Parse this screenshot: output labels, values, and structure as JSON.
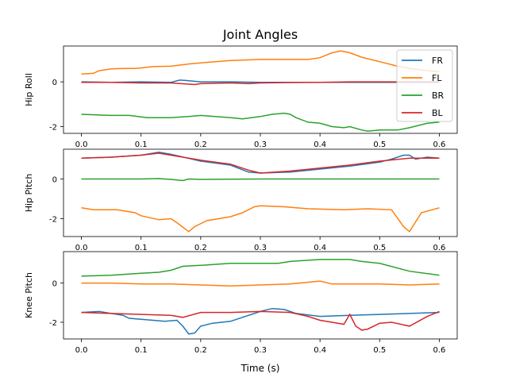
{
  "figure": {
    "title": "Joint Angles",
    "xlabel": "Time (s)"
  },
  "colors": {
    "FR": "#1f77b4",
    "FL": "#ff7f0e",
    "BR": "#2ca02c",
    "BL": "#d62728"
  },
  "legend": {
    "placement": "top-right",
    "entries": [
      "FR",
      "FL",
      "BR",
      "BL"
    ]
  },
  "chart_data": [
    {
      "type": "line",
      "ylabel": "Hip Roll",
      "xlim": [
        -0.03,
        0.63
      ],
      "ylim": [
        -2.3,
        1.6
      ],
      "xticks": [
        "0.0",
        "0.1",
        "0.2",
        "0.3",
        "0.4",
        "0.5",
        "0.6"
      ],
      "yticks": [
        "-2",
        "0"
      ],
      "series": [
        {
          "name": "FR",
          "x": [
            0,
            0.05,
            0.1,
            0.15,
            0.165,
            0.175,
            0.2,
            0.25,
            0.3,
            0.35,
            0.4,
            0.45,
            0.5,
            0.55,
            0.6
          ],
          "y": [
            0,
            -0.02,
            0,
            -0.02,
            0.08,
            0.06,
            0,
            0,
            -0.02,
            -0.02,
            -0.02,
            -0.02,
            -0.02,
            -0.02,
            -0.02
          ]
        },
        {
          "name": "FL",
          "x": [
            0,
            0.02,
            0.03,
            0.05,
            0.07,
            0.09,
            0.1,
            0.12,
            0.15,
            0.18,
            0.2,
            0.25,
            0.3,
            0.35,
            0.38,
            0.4,
            0.42,
            0.435,
            0.45,
            0.47,
            0.5,
            0.53,
            0.55,
            0.58,
            0.6
          ],
          "y": [
            0.35,
            0.38,
            0.5,
            0.58,
            0.6,
            0.6,
            0.62,
            0.68,
            0.7,
            0.8,
            0.85,
            0.95,
            1.0,
            1.0,
            1.0,
            1.08,
            1.3,
            1.38,
            1.3,
            1.1,
            0.9,
            0.7,
            0.6,
            0.5,
            0.45
          ]
        },
        {
          "name": "BR",
          "x": [
            0,
            0.03,
            0.05,
            0.08,
            0.11,
            0.15,
            0.18,
            0.2,
            0.25,
            0.27,
            0.3,
            0.32,
            0.34,
            0.35,
            0.36,
            0.38,
            0.4,
            0.42,
            0.44,
            0.45,
            0.47,
            0.48,
            0.5,
            0.53,
            0.55,
            0.58,
            0.6
          ],
          "y": [
            -1.45,
            -1.48,
            -1.5,
            -1.5,
            -1.6,
            -1.6,
            -1.55,
            -1.5,
            -1.6,
            -1.65,
            -1.55,
            -1.45,
            -1.4,
            -1.45,
            -1.6,
            -1.8,
            -1.85,
            -2.0,
            -2.05,
            -2.0,
            -2.15,
            -2.2,
            -2.15,
            -2.15,
            -2.05,
            -1.85,
            -1.8
          ]
        },
        {
          "name": "BL",
          "x": [
            0,
            0.05,
            0.1,
            0.15,
            0.19,
            0.2,
            0.25,
            0.28,
            0.3,
            0.35,
            0.4,
            0.45,
            0.5,
            0.55,
            0.6
          ],
          "y": [
            -0.02,
            -0.02,
            -0.05,
            -0.05,
            -0.12,
            -0.08,
            -0.05,
            -0.08,
            -0.05,
            -0.03,
            -0.02,
            0,
            0,
            0,
            0
          ]
        }
      ]
    },
    {
      "type": "line",
      "ylabel": "Hip Pitch",
      "xlim": [
        -0.03,
        0.63
      ],
      "ylim": [
        -2.9,
        1.5
      ],
      "xticks": [
        "0.0",
        "0.1",
        "0.2",
        "0.3",
        "0.4",
        "0.5",
        "0.6"
      ],
      "yticks": [
        "-2",
        "0"
      ],
      "series": [
        {
          "name": "FR",
          "x": [
            0,
            0.05,
            0.1,
            0.13,
            0.15,
            0.2,
            0.25,
            0.28,
            0.3,
            0.35,
            0.4,
            0.45,
            0.5,
            0.52,
            0.54,
            0.55,
            0.56,
            0.58,
            0.6
          ],
          "y": [
            1.05,
            1.1,
            1.2,
            1.35,
            1.25,
            0.9,
            0.7,
            0.35,
            0.3,
            0.35,
            0.5,
            0.65,
            0.85,
            1.0,
            1.2,
            1.2,
            1.0,
            1.1,
            1.05
          ]
        },
        {
          "name": "FL",
          "x": [
            0,
            0.02,
            0.04,
            0.06,
            0.07,
            0.09,
            0.1,
            0.13,
            0.15,
            0.16,
            0.18,
            0.19,
            0.21,
            0.25,
            0.27,
            0.29,
            0.3,
            0.34,
            0.38,
            0.44,
            0.48,
            0.52,
            0.54,
            0.55,
            0.57,
            0.6
          ],
          "y": [
            -1.45,
            -1.55,
            -1.55,
            -1.55,
            -1.6,
            -1.7,
            -1.85,
            -2.05,
            -2.0,
            -2.2,
            -2.65,
            -2.4,
            -2.1,
            -1.9,
            -1.7,
            -1.4,
            -1.35,
            -1.4,
            -1.5,
            -1.55,
            -1.5,
            -1.55,
            -2.4,
            -2.65,
            -1.7,
            -1.45
          ]
        },
        {
          "name": "BR",
          "x": [
            0,
            0.05,
            0.1,
            0.13,
            0.15,
            0.17,
            0.18,
            0.2,
            0.3,
            0.5,
            0.6
          ],
          "y": [
            0,
            0,
            0,
            0.02,
            -0.02,
            -0.08,
            0,
            -0.02,
            0,
            0,
            0
          ]
        },
        {
          "name": "BL",
          "x": [
            0,
            0.05,
            0.1,
            0.13,
            0.15,
            0.2,
            0.25,
            0.28,
            0.3,
            0.35,
            0.4,
            0.45,
            0.5,
            0.55,
            0.6
          ],
          "y": [
            1.05,
            1.1,
            1.2,
            1.3,
            1.2,
            0.95,
            0.75,
            0.45,
            0.3,
            0.4,
            0.55,
            0.7,
            0.9,
            1.05,
            1.05
          ]
        }
      ]
    },
    {
      "type": "line",
      "ylabel": "Knee Pitch",
      "xlim": [
        -0.03,
        0.63
      ],
      "ylim": [
        -2.85,
        1.6
      ],
      "xticks": [
        "0.0",
        "0.1",
        "0.2",
        "0.3",
        "0.4",
        "0.5",
        "0.6"
      ],
      "yticks": [
        "-2",
        "0"
      ],
      "series": [
        {
          "name": "FR",
          "x": [
            0,
            0.03,
            0.05,
            0.07,
            0.08,
            0.1,
            0.14,
            0.16,
            0.17,
            0.18,
            0.19,
            0.2,
            0.22,
            0.25,
            0.27,
            0.3,
            0.32,
            0.34,
            0.36,
            0.4,
            0.45,
            0.5,
            0.55,
            0.6
          ],
          "y": [
            -1.5,
            -1.45,
            -1.55,
            -1.65,
            -1.8,
            -1.85,
            -1.95,
            -1.9,
            -2.2,
            -2.6,
            -2.55,
            -2.2,
            -2.05,
            -1.95,
            -1.75,
            -1.45,
            -1.3,
            -1.35,
            -1.55,
            -1.7,
            -1.65,
            -1.6,
            -1.55,
            -1.5
          ]
        },
        {
          "name": "FL",
          "x": [
            0,
            0.05,
            0.1,
            0.15,
            0.2,
            0.25,
            0.3,
            0.35,
            0.4,
            0.42,
            0.45,
            0.5,
            0.55,
            0.6
          ],
          "y": [
            0,
            0,
            -0.05,
            -0.05,
            -0.1,
            -0.15,
            -0.1,
            -0.05,
            0.1,
            -0.05,
            -0.05,
            -0.05,
            -0.1,
            -0.05
          ]
        },
        {
          "name": "BR",
          "x": [
            0,
            0.05,
            0.1,
            0.13,
            0.15,
            0.17,
            0.2,
            0.25,
            0.3,
            0.33,
            0.35,
            0.4,
            0.45,
            0.47,
            0.5,
            0.55,
            0.6
          ],
          "y": [
            0.35,
            0.4,
            0.5,
            0.55,
            0.65,
            0.85,
            0.9,
            1.0,
            1.0,
            1.0,
            1.1,
            1.2,
            1.2,
            1.1,
            1.0,
            0.6,
            0.4
          ]
        },
        {
          "name": "BL",
          "x": [
            0,
            0.05,
            0.1,
            0.15,
            0.17,
            0.2,
            0.25,
            0.3,
            0.35,
            0.38,
            0.4,
            0.44,
            0.45,
            0.46,
            0.47,
            0.48,
            0.5,
            0.52,
            0.55,
            0.58,
            0.6
          ],
          "y": [
            -1.5,
            -1.55,
            -1.6,
            -1.65,
            -1.75,
            -1.5,
            -1.5,
            -1.45,
            -1.5,
            -1.7,
            -1.9,
            -2.1,
            -1.6,
            -2.2,
            -2.4,
            -2.35,
            -2.05,
            -2.0,
            -2.2,
            -1.7,
            -1.45
          ]
        }
      ]
    }
  ]
}
